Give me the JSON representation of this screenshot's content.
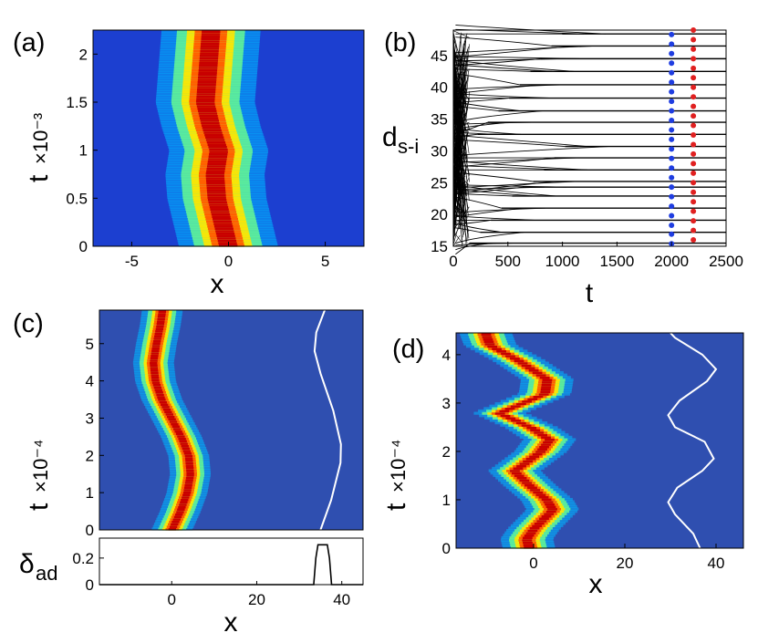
{
  "figure": {
    "panel_labels": [
      "(a)",
      "(b)",
      "(c)",
      "(d)"
    ]
  },
  "chart_data": [
    {
      "panel": "(a)",
      "type": "heatmap",
      "xlabel": "x",
      "ylabel": "t",
      "ylabel_scale": "×10⁻³",
      "xlim": [
        -7,
        7
      ],
      "ylim": [
        0,
        2.25
      ],
      "xticks": [
        "-5",
        "0",
        "5"
      ],
      "xtick_values": [
        -5,
        0,
        5
      ],
      "yticks": [
        "0",
        "0.5",
        "1",
        "1.5",
        "2"
      ],
      "ytick_values": [
        0,
        0.5,
        1,
        1.5,
        2
      ],
      "center_path": [
        [
          0,
          0
        ],
        [
          -0.3,
          0.25
        ],
        [
          -0.6,
          0.5
        ],
        [
          -0.7,
          0.75
        ],
        [
          -0.5,
          1.0
        ],
        [
          -0.9,
          1.25
        ],
        [
          -1.2,
          1.5
        ],
        [
          -1.1,
          1.75
        ],
        [
          -1.0,
          2.0
        ],
        [
          -0.9,
          2.25
        ]
      ],
      "peak_width": 1.6,
      "colormap": "jet"
    },
    {
      "panel": "(b)",
      "type": "line",
      "xlabel": "t",
      "ylabel": "d",
      "ylabel_subscript": "s-i",
      "xlim": [
        0,
        2500
      ],
      "ylim": [
        15,
        49
      ],
      "xticks": [
        "0",
        "500",
        "1000",
        "1500",
        "2000",
        "2500"
      ],
      "xtick_values": [
        0,
        500,
        1000,
        1500,
        2000,
        2500
      ],
      "yticks": [
        "15",
        "20",
        "25",
        "30",
        "35",
        "40",
        "45"
      ],
      "ytick_values": [
        15,
        20,
        25,
        30,
        35,
        40,
        45
      ],
      "levels": [
        15.5,
        17.2,
        19.1,
        21.0,
        22.9,
        24.3,
        25.2,
        27.0,
        28.9,
        30.7,
        32.6,
        34.5,
        36.3,
        38.3,
        40.4,
        42.5,
        44.5,
        46.5,
        48.4
      ],
      "series": [
        {
          "name": "blue markers",
          "color": "#1f3de0",
          "t": 2000,
          "values": [
            15.4,
            16.9,
            18.3,
            19.8,
            21.3,
            22.8,
            24.3,
            25.8,
            27.3,
            28.8,
            30.3,
            31.8,
            33.3,
            34.8,
            36.3,
            37.8,
            39.3,
            40.8,
            42.3,
            43.8,
            45.3,
            46.8,
            48.3
          ]
        },
        {
          "name": "red markers",
          "color": "#e02020",
          "t": 2200,
          "values": [
            16.0,
            17.5,
            19.0,
            20.5,
            22.0,
            23.5,
            25.0,
            26.5,
            28.0,
            29.5,
            31.0,
            32.5,
            34.0,
            35.5,
            37.0,
            38.5,
            40.0,
            41.5,
            43.0,
            44.5,
            46.0,
            47.5,
            49.0
          ]
        }
      ]
    },
    {
      "panel": "(c)",
      "type": "heatmap",
      "xlabel": "x",
      "ylabel": "t",
      "ylabel_scale": "×10⁻⁴",
      "xlim": [
        -17,
        45
      ],
      "ylim": [
        0,
        5.9
      ],
      "xticks": [
        "0",
        "20",
        "40"
      ],
      "xtick_values": [
        0,
        20,
        40
      ],
      "yticks": [
        "0",
        "1",
        "2",
        "3",
        "4",
        "5"
      ],
      "ytick_values": [
        0,
        1,
        2,
        3,
        4,
        5
      ],
      "center_path": [
        [
          0,
          0
        ],
        [
          2,
          0.5
        ],
        [
          3.6,
          1.0
        ],
        [
          4.4,
          1.5
        ],
        [
          4,
          2.0
        ],
        [
          2.3,
          2.5
        ],
        [
          0,
          3.0
        ],
        [
          -2.3,
          3.5
        ],
        [
          -3.8,
          4.0
        ],
        [
          -4.3,
          4.5
        ],
        [
          -3.6,
          5.0
        ],
        [
          -2.7,
          5.5
        ],
        [
          -2.2,
          5.9
        ]
      ],
      "white_curve": [
        [
          35,
          0
        ],
        [
          37.5,
          0.8
        ],
        [
          39.7,
          1.8
        ],
        [
          39.8,
          2.3
        ],
        [
          38,
          3.2
        ],
        [
          35,
          4.2
        ],
        [
          33.6,
          4.8
        ],
        [
          34,
          5.3
        ],
        [
          36,
          5.9
        ]
      ],
      "peak_width": 3.0,
      "colormap": "jet"
    },
    {
      "panel": "(c) lower",
      "type": "line",
      "ylabel": "δ",
      "ylabel_subscript": "ad",
      "xlim": [
        -17,
        45
      ],
      "ylim": [
        0,
        0.35
      ],
      "yticks": [
        "0",
        "0.2"
      ],
      "ytick_values": [
        0,
        0.2
      ],
      "series": [
        {
          "name": "delta_ad",
          "color": "#000000",
          "x": [
            -17,
            33.4,
            33.9,
            34.4,
            36.6,
            37.1,
            37.6,
            45
          ],
          "values": [
            0,
            0,
            0.2,
            0.3,
            0.3,
            0.2,
            0,
            0
          ]
        }
      ]
    },
    {
      "panel": "(d)",
      "type": "heatmap",
      "xlabel": "x",
      "ylabel": "t",
      "ylabel_scale": "×10⁻⁴",
      "xlim": [
        -17,
        46
      ],
      "ylim": [
        0,
        4.45
      ],
      "xticks": [
        "0",
        "20",
        "40"
      ],
      "xtick_values": [
        0,
        20,
        40
      ],
      "yticks": [
        "0",
        "1",
        "2",
        "3",
        "4"
      ],
      "ytick_values": [
        0,
        1,
        2,
        3,
        4
      ],
      "center_path": [
        [
          -1,
          0
        ],
        [
          -1.5,
          0.2
        ],
        [
          0,
          0.4
        ],
        [
          4.2,
          0.8
        ],
        [
          3,
          1.0
        ],
        [
          -0.8,
          1.3
        ],
        [
          -4.2,
          1.6
        ],
        [
          1.5,
          2.0
        ],
        [
          3.5,
          2.25
        ],
        [
          -0.5,
          2.5
        ],
        [
          -7.5,
          2.8
        ],
        [
          2.5,
          3.2
        ],
        [
          3.0,
          3.5
        ],
        [
          -3.5,
          3.9
        ],
        [
          -9.5,
          4.2
        ],
        [
          -10.5,
          4.45
        ]
      ],
      "white_curve": [
        [
          36.5,
          0
        ],
        [
          35,
          0.3
        ],
        [
          31,
          0.7
        ],
        [
          29.5,
          0.95
        ],
        [
          31.5,
          1.25
        ],
        [
          37,
          1.6
        ],
        [
          39.5,
          1.85
        ],
        [
          37.5,
          2.2
        ],
        [
          31,
          2.5
        ],
        [
          29.5,
          2.75
        ],
        [
          32,
          3.05
        ],
        [
          38,
          3.45
        ],
        [
          40,
          3.7
        ],
        [
          37,
          4.0
        ],
        [
          31,
          4.35
        ],
        [
          30,
          4.45
        ]
      ],
      "peak_width": 3.6,
      "colormap": "jet"
    }
  ]
}
